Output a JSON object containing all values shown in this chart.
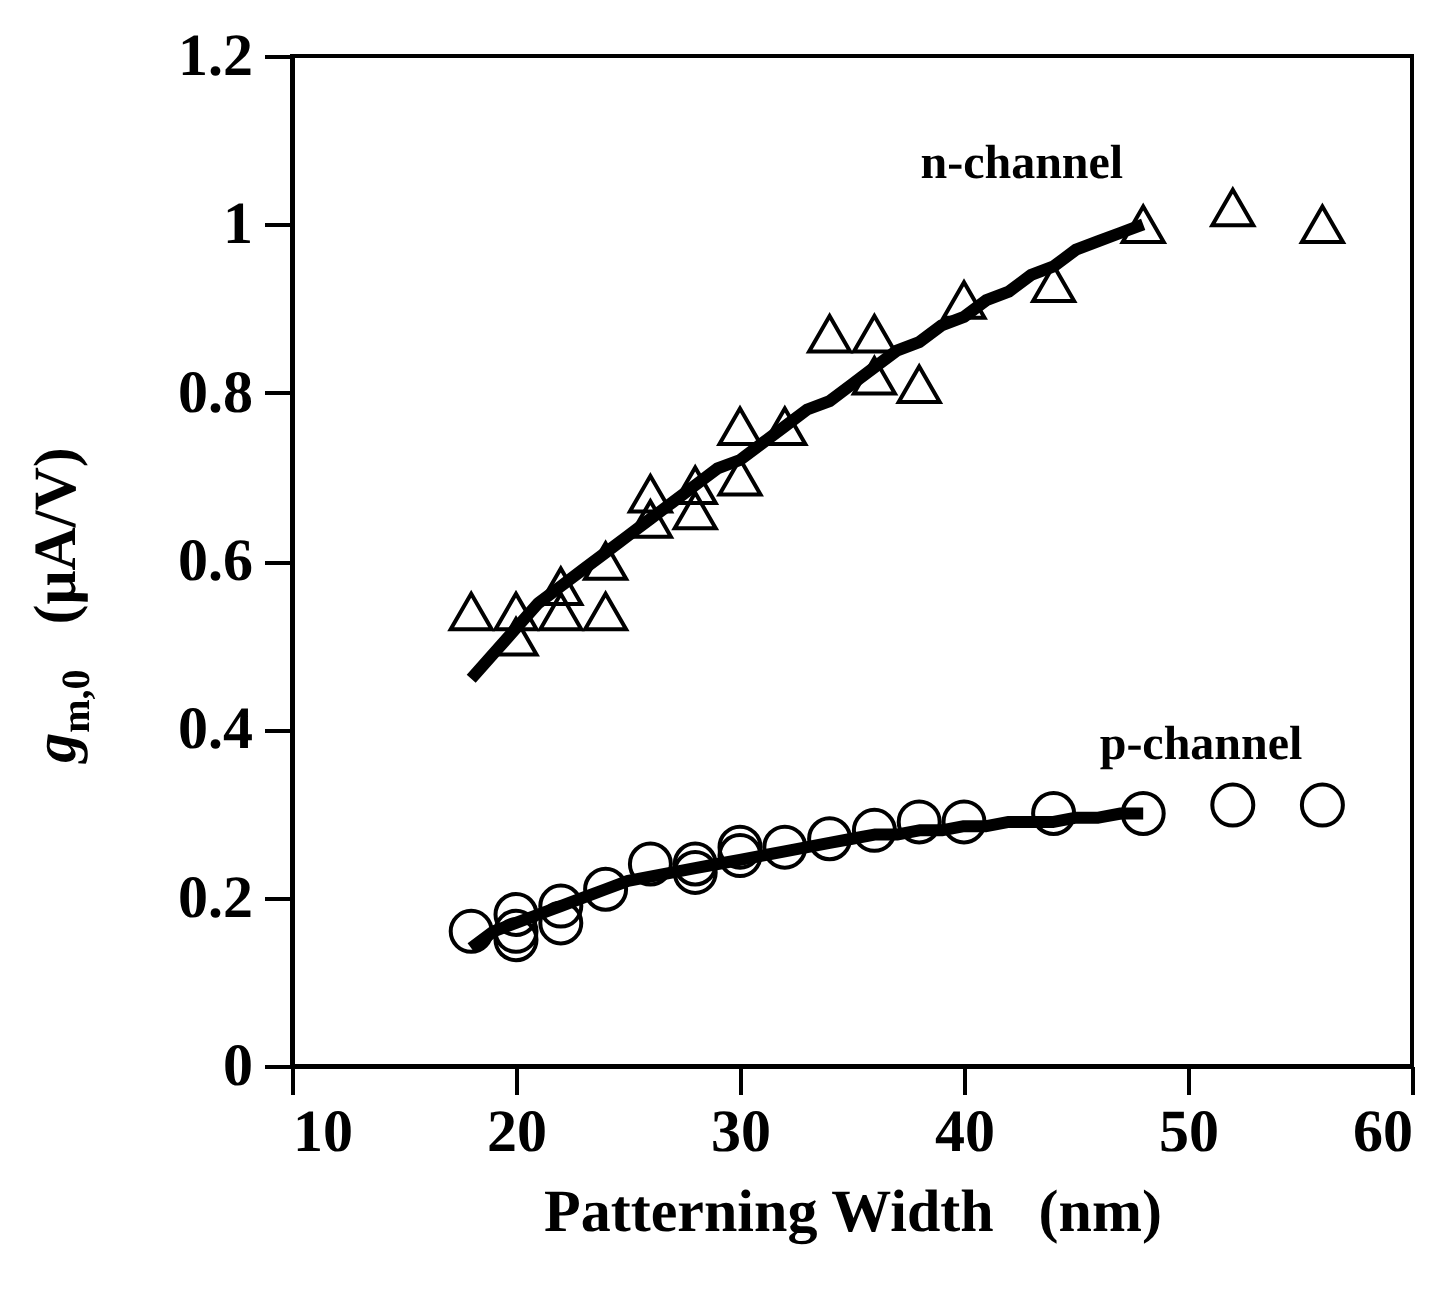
{
  "chart_data": {
    "type": "scatter",
    "xlabel": "Patterning Width   (nm)",
    "ylabel": "g$_{m,0}$   (μA/V)",
    "xlim": [
      10,
      60
    ],
    "xticks": [
      10,
      20,
      30,
      40,
      50,
      60
    ],
    "ylim": [
      0,
      1.2
    ],
    "yticks": [
      {
        "value": 0,
        "label": "0"
      },
      0.2,
      0.4,
      0.6,
      0.8,
      {
        "value": 1,
        "label": "1"
      },
      1.2
    ],
    "grid": false,
    "series": [
      {
        "type": "scatter",
        "marker": "triangle",
        "color": "#000000",
        "x": [
          18,
          20,
          20,
          22,
          22,
          24,
          24,
          26,
          26,
          28,
          28,
          30,
          30,
          32,
          34,
          36,
          36,
          38,
          40,
          44,
          48,
          52,
          56
        ],
        "values": [
          0.54,
          0.54,
          0.51,
          0.57,
          0.54,
          0.54,
          0.6,
          0.65,
          0.68,
          0.66,
          0.69,
          0.7,
          0.76,
          0.76,
          0.87,
          0.87,
          0.82,
          0.81,
          0.91,
          0.93,
          1.0,
          1.02,
          1.0
        ]
      },
      {
        "name": "n-channel",
        "type": "line",
        "color": "#000000",
        "x": [
          18,
          19,
          20,
          21,
          22,
          23,
          24,
          25,
          26,
          27,
          28,
          29,
          30,
          31,
          32,
          33,
          34,
          35,
          36,
          37,
          38,
          39,
          40,
          41,
          42,
          43,
          44,
          45,
          46,
          47,
          48
        ],
        "values": [
          0.46,
          0.49,
          0.52,
          0.55,
          0.57,
          0.59,
          0.61,
          0.63,
          0.65,
          0.67,
          0.69,
          0.71,
          0.72,
          0.74,
          0.76,
          0.78,
          0.79,
          0.81,
          0.83,
          0.85,
          0.86,
          0.88,
          0.89,
          0.91,
          0.92,
          0.94,
          0.95,
          0.97,
          0.98,
          0.99,
          1.0
        ]
      },
      {
        "name": "p-channel",
        "type": "scatter",
        "marker": "circle",
        "color": "#000000",
        "x": [
          18,
          20,
          20,
          20,
          22,
          22,
          24,
          26,
          28,
          28,
          30,
          30,
          32,
          34,
          36,
          38,
          40,
          44,
          48,
          52,
          56
        ],
        "values": [
          0.16,
          0.15,
          0.18,
          0.16,
          0.19,
          0.17,
          0.21,
          0.24,
          0.23,
          0.24,
          0.25,
          0.26,
          0.26,
          0.27,
          0.28,
          0.29,
          0.29,
          0.3,
          0.3,
          0.31,
          0.31
        ]
      },
      {
        "type": "line",
        "color": "#000000",
        "x": [
          18,
          19,
          20,
          21,
          22,
          23,
          24,
          25,
          26,
          27,
          28,
          29,
          30,
          31,
          32,
          33,
          34,
          35,
          36,
          37,
          38,
          39,
          40,
          41,
          42,
          43,
          44,
          45,
          46,
          47,
          48
        ],
        "values": [
          0.14,
          0.16,
          0.17,
          0.18,
          0.19,
          0.2,
          0.21,
          0.22,
          0.225,
          0.23,
          0.235,
          0.24,
          0.245,
          0.25,
          0.255,
          0.26,
          0.265,
          0.27,
          0.275,
          0.275,
          0.28,
          0.28,
          0.285,
          0.285,
          0.29,
          0.29,
          0.29,
          0.295,
          0.295,
          0.3,
          0.3
        ]
      }
    ]
  }
}
